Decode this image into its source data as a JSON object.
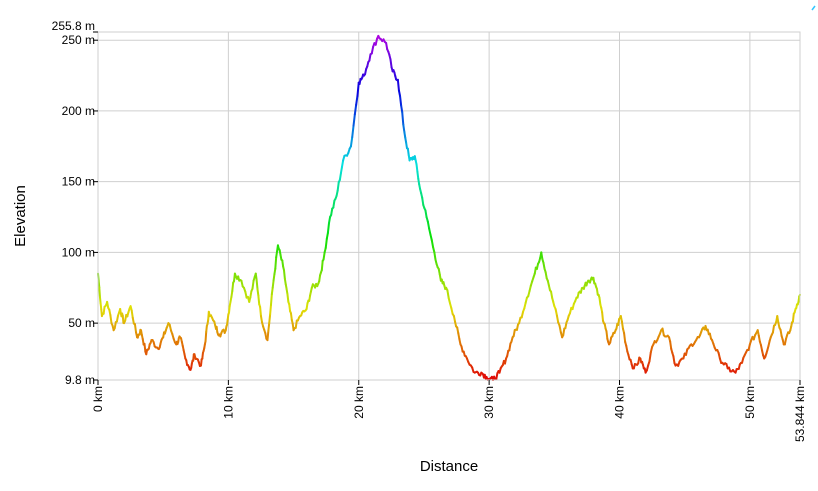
{
  "chart_data": {
    "type": "line",
    "title": "",
    "xlabel": "Distance",
    "ylabel": "Elevation",
    "xlim": [
      0,
      53.844
    ],
    "ylim": [
      9.8,
      255.8
    ],
    "grid": true,
    "legend": "none",
    "x_ticks": [
      {
        "value": 0,
        "label": "0 km"
      },
      {
        "value": 10,
        "label": "10 km"
      },
      {
        "value": 20,
        "label": "20 km"
      },
      {
        "value": 30,
        "label": "30 km"
      },
      {
        "value": 40,
        "label": "40 km"
      },
      {
        "value": 50,
        "label": "50 km"
      },
      {
        "value": 53.844,
        "label": "53.844 km"
      }
    ],
    "y_ticks": [
      {
        "value": 9.8,
        "label": "9.8 m"
      },
      {
        "value": 50,
        "label": "50 m"
      },
      {
        "value": 100,
        "label": "100 m"
      },
      {
        "value": 150,
        "label": "150 m"
      },
      {
        "value": 200,
        "label": "200 m"
      },
      {
        "value": 250,
        "label": "250 m"
      },
      {
        "value": 255.8,
        "label": "255.8 m"
      }
    ],
    "series": [
      {
        "name": "Elevation",
        "color_scale": "elevation-rainbow",
        "x": [
          0,
          0.3,
          0.7,
          1.2,
          1.7,
          2.0,
          2.5,
          3.0,
          3.3,
          3.7,
          4.1,
          4.6,
          5.0,
          5.4,
          6.0,
          6.3,
          6.7,
          7.1,
          7.4,
          7.9,
          8.2,
          8.5,
          9.0,
          9.3,
          9.8,
          10.1,
          10.5,
          11.0,
          11.6,
          12.1,
          12.5,
          13.0,
          13.4,
          13.8,
          14.2,
          14.6,
          15.0,
          15.5,
          16.0,
          16.4,
          16.9,
          17.3,
          17.8,
          18.3,
          18.8,
          19.4,
          20.0,
          20.4,
          20.9,
          21.5,
          22.1,
          22.6,
          23.0,
          23.5,
          23.9,
          24.3,
          24.7,
          25.2,
          25.8,
          26.3,
          26.7,
          27.3,
          27.8,
          28.3,
          28.9,
          29.4,
          29.8,
          30.3,
          30.8,
          31.3,
          31.8,
          32.3,
          32.9,
          33.5,
          34.0,
          34.5,
          35.0,
          35.6,
          36.1,
          36.7,
          37.2,
          37.6,
          38.0,
          38.4,
          38.8,
          39.2,
          39.7,
          40.1,
          40.6,
          41.1,
          41.6,
          42.0,
          42.6,
          43.2,
          43.8,
          44.3,
          44.9,
          45.5,
          46.1,
          46.6,
          47.1,
          47.7,
          48.3,
          48.9,
          49.4,
          50.0,
          50.6,
          51.1,
          51.6,
          52.1,
          52.6,
          53.1,
          53.5,
          53.844
        ],
        "y": [
          85,
          55,
          65,
          45,
          60,
          50,
          62,
          40,
          45,
          28,
          38,
          32,
          40,
          50,
          35,
          40,
          25,
          17,
          28,
          20,
          35,
          58,
          48,
          42,
          45,
          62,
          85,
          80,
          65,
          85,
          55,
          38,
          75,
          105,
          90,
          65,
          45,
          55,
          60,
          75,
          78,
          95,
          125,
          140,
          165,
          175,
          220,
          225,
          240,
          253,
          248,
          228,
          222,
          185,
          165,
          168,
          145,
          125,
          100,
          80,
          75,
          55,
          35,
          25,
          15,
          15,
          12,
          9.8,
          15,
          25,
          40,
          50,
          68,
          85,
          100,
          80,
          62,
          40,
          55,
          68,
          75,
          80,
          82,
          70,
          50,
          35,
          45,
          55,
          30,
          18,
          25,
          15,
          35,
          45,
          40,
          20,
          25,
          35,
          40,
          48,
          38,
          25,
          18,
          15,
          22,
          35,
          45,
          25,
          40,
          55,
          35,
          45,
          60,
          70
        ]
      }
    ]
  }
}
